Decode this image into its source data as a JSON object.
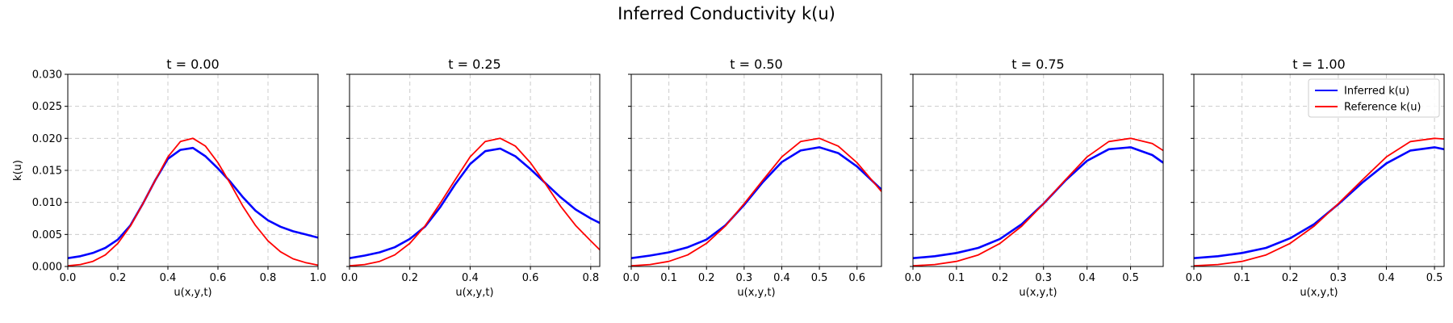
{
  "figure": {
    "title": "Inferred Conductivity k(u)"
  },
  "colors": {
    "inferred": "#0000ff",
    "reference": "#ff0000",
    "grid": "#cccccc"
  },
  "legend": {
    "placement": "upper-right-of-last-panel",
    "entries": [
      "Inferred k(u)",
      "Reference k(u)"
    ]
  },
  "chart_data": [
    {
      "type": "line",
      "title": "t = 0.00",
      "xlabel": "u(x,y,t)",
      "ylabel": "k(u)",
      "xlim": [
        0,
        1.0
      ],
      "ylim": [
        0,
        0.03
      ],
      "xticks": [
        0.0,
        0.2,
        0.4,
        0.6,
        0.8,
        1.0
      ],
      "xtick_labels": [
        "0.0",
        "0.2",
        "0.4",
        "0.6",
        "0.8",
        "1.0"
      ],
      "yticks": [
        0,
        0.005,
        0.01,
        0.015,
        0.02,
        0.025,
        0.03
      ],
      "ytick_labels": [
        "0.000",
        "0.005",
        "0.010",
        "0.015",
        "0.020",
        "0.025",
        "0.030"
      ],
      "grid": true,
      "series": [
        {
          "name": "Inferred k(u)",
          "style": "inferred",
          "x": [
            0,
            0.05,
            0.1,
            0.15,
            0.2,
            0.25,
            0.3,
            0.35,
            0.4,
            0.45,
            0.5,
            0.55,
            0.6,
            0.65,
            0.7,
            0.75,
            0.8,
            0.85,
            0.9,
            0.95,
            1.0
          ],
          "y": [
            0.0013,
            0.0016,
            0.0021,
            0.0029,
            0.0042,
            0.0064,
            0.0098,
            0.0135,
            0.0168,
            0.0182,
            0.0185,
            0.0172,
            0.0153,
            0.0132,
            0.0108,
            0.0087,
            0.0072,
            0.0062,
            0.0055,
            0.005,
            0.0045
          ]
        },
        {
          "name": "Reference k(u)",
          "style": "reference",
          "x": [
            0,
            0.05,
            0.1,
            0.15,
            0.2,
            0.25,
            0.3,
            0.35,
            0.4,
            0.45,
            0.5,
            0.55,
            0.6,
            0.65,
            0.7,
            0.75,
            0.8,
            0.85,
            0.9,
            0.95,
            1.0
          ],
          "y": [
            0.0001,
            0.0003,
            0.0008,
            0.0018,
            0.0036,
            0.0063,
            0.0098,
            0.0135,
            0.0171,
            0.0195,
            0.02,
            0.0188,
            0.0162,
            0.0129,
            0.0094,
            0.0064,
            0.004,
            0.0023,
            0.0012,
            0.0006,
            0.0002
          ]
        }
      ]
    },
    {
      "type": "line",
      "title": "t = 0.25",
      "xlabel": "u(x,y,t)",
      "ylabel": "",
      "xlim": [
        0,
        0.83
      ],
      "ylim": [
        0,
        0.03
      ],
      "xticks": [
        0.0,
        0.2,
        0.4,
        0.6,
        0.8
      ],
      "xtick_labels": [
        "0.0",
        "0.2",
        "0.4",
        "0.6",
        "0.8"
      ],
      "yticks": [
        0,
        0.005,
        0.01,
        0.015,
        0.02,
        0.025,
        0.03
      ],
      "ytick_labels": [],
      "grid": true,
      "series": [
        {
          "name": "Inferred k(u)",
          "style": "inferred",
          "x": [
            0,
            0.05,
            0.1,
            0.15,
            0.2,
            0.25,
            0.3,
            0.35,
            0.4,
            0.45,
            0.5,
            0.55,
            0.6,
            0.65,
            0.7,
            0.75,
            0.8,
            0.83
          ],
          "y": [
            0.0013,
            0.0017,
            0.0022,
            0.003,
            0.0043,
            0.0062,
            0.0092,
            0.0128,
            0.016,
            0.018,
            0.0184,
            0.0172,
            0.0152,
            0.013,
            0.0108,
            0.0089,
            0.0075,
            0.0068
          ]
        },
        {
          "name": "Reference k(u)",
          "style": "reference",
          "x": [
            0,
            0.05,
            0.1,
            0.15,
            0.2,
            0.25,
            0.3,
            0.35,
            0.4,
            0.45,
            0.5,
            0.55,
            0.6,
            0.65,
            0.7,
            0.75,
            0.8,
            0.83
          ],
          "y": [
            0.0001,
            0.0003,
            0.0008,
            0.0018,
            0.0036,
            0.0063,
            0.0098,
            0.0135,
            0.0171,
            0.0195,
            0.02,
            0.0188,
            0.0162,
            0.0129,
            0.0094,
            0.0064,
            0.004,
            0.0026
          ]
        }
      ]
    },
    {
      "type": "line",
      "title": "t = 0.50",
      "xlabel": "u(x,y,t)",
      "ylabel": "",
      "xlim": [
        0,
        0.665
      ],
      "ylim": [
        0,
        0.03
      ],
      "xticks": [
        0.0,
        0.1,
        0.2,
        0.3,
        0.4,
        0.5,
        0.6
      ],
      "xtick_labels": [
        "0.0",
        "0.1",
        "0.2",
        "0.3",
        "0.4",
        "0.5",
        "0.6"
      ],
      "yticks": [
        0,
        0.005,
        0.01,
        0.015,
        0.02,
        0.025,
        0.03
      ],
      "ytick_labels": [],
      "grid": true,
      "series": [
        {
          "name": "Inferred k(u)",
          "style": "inferred",
          "x": [
            0,
            0.05,
            0.1,
            0.15,
            0.2,
            0.25,
            0.3,
            0.35,
            0.4,
            0.45,
            0.5,
            0.55,
            0.6,
            0.665
          ],
          "y": [
            0.0013,
            0.0017,
            0.0022,
            0.003,
            0.0042,
            0.0064,
            0.0096,
            0.0132,
            0.0163,
            0.0181,
            0.0186,
            0.0177,
            0.0156,
            0.012
          ]
        },
        {
          "name": "Reference k(u)",
          "style": "reference",
          "x": [
            0,
            0.05,
            0.1,
            0.15,
            0.2,
            0.25,
            0.3,
            0.35,
            0.4,
            0.45,
            0.5,
            0.55,
            0.6,
            0.665
          ],
          "y": [
            0.0001,
            0.0003,
            0.0008,
            0.0018,
            0.0036,
            0.0063,
            0.0098,
            0.0135,
            0.0171,
            0.0195,
            0.02,
            0.0188,
            0.0162,
            0.0117
          ]
        }
      ]
    },
    {
      "type": "line",
      "title": "t = 0.75",
      "xlabel": "u(x,y,t)",
      "ylabel": "",
      "xlim": [
        0,
        0.575
      ],
      "ylim": [
        0,
        0.03
      ],
      "xticks": [
        0.0,
        0.1,
        0.2,
        0.3,
        0.4,
        0.5
      ],
      "xtick_labels": [
        "0.0",
        "0.1",
        "0.2",
        "0.3",
        "0.4",
        "0.5"
      ],
      "yticks": [
        0,
        0.005,
        0.01,
        0.015,
        0.02,
        0.025,
        0.03
      ],
      "ytick_labels": [],
      "grid": true,
      "series": [
        {
          "name": "Inferred k(u)",
          "style": "inferred",
          "x": [
            0,
            0.05,
            0.1,
            0.15,
            0.2,
            0.25,
            0.3,
            0.35,
            0.4,
            0.45,
            0.5,
            0.55,
            0.575
          ],
          "y": [
            0.0013,
            0.0016,
            0.0021,
            0.0029,
            0.0043,
            0.0066,
            0.0098,
            0.0134,
            0.0165,
            0.0183,
            0.0186,
            0.0174,
            0.0162
          ]
        },
        {
          "name": "Reference k(u)",
          "style": "reference",
          "x": [
            0,
            0.05,
            0.1,
            0.15,
            0.2,
            0.25,
            0.3,
            0.35,
            0.4,
            0.45,
            0.5,
            0.55,
            0.575
          ],
          "y": [
            0.0001,
            0.0003,
            0.0008,
            0.0018,
            0.0036,
            0.0063,
            0.0098,
            0.0135,
            0.0171,
            0.0195,
            0.02,
            0.0192,
            0.0181
          ]
        }
      ]
    },
    {
      "type": "line",
      "title": "t = 1.00",
      "xlabel": "u(x,y,t)",
      "ylabel": "",
      "xlim": [
        0,
        0.52
      ],
      "ylim": [
        0,
        0.03
      ],
      "xticks": [
        0.0,
        0.1,
        0.2,
        0.3,
        0.4,
        0.5
      ],
      "xtick_labels": [
        "0.0",
        "0.1",
        "0.2",
        "0.3",
        "0.4",
        "0.5"
      ],
      "yticks": [
        0,
        0.005,
        0.01,
        0.015,
        0.02,
        0.025,
        0.03
      ],
      "ytick_labels": [],
      "grid": true,
      "series": [
        {
          "name": "Inferred k(u)",
          "style": "inferred",
          "x": [
            0,
            0.05,
            0.1,
            0.15,
            0.2,
            0.25,
            0.3,
            0.35,
            0.4,
            0.45,
            0.5,
            0.52
          ],
          "y": [
            0.0013,
            0.0016,
            0.0021,
            0.0029,
            0.0044,
            0.0066,
            0.0097,
            0.0131,
            0.0161,
            0.0181,
            0.0186,
            0.0183
          ]
        },
        {
          "name": "Reference k(u)",
          "style": "reference",
          "x": [
            0,
            0.05,
            0.1,
            0.15,
            0.2,
            0.25,
            0.3,
            0.35,
            0.4,
            0.45,
            0.5,
            0.52
          ],
          "y": [
            0.0001,
            0.0003,
            0.0008,
            0.0018,
            0.0036,
            0.0063,
            0.0098,
            0.0135,
            0.0171,
            0.0195,
            0.02,
            0.0199
          ]
        }
      ]
    }
  ]
}
